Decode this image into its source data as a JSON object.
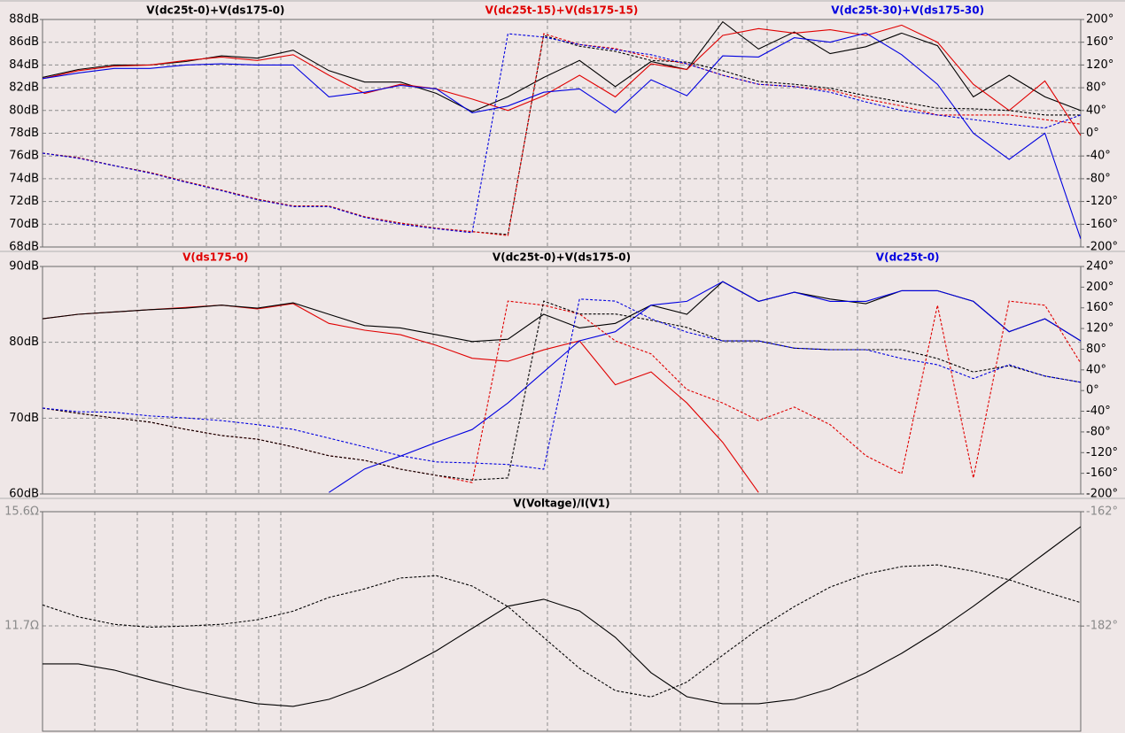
{
  "chart_data": [
    {
      "type": "line",
      "grid": true,
      "ylim": [
        68,
        88
      ],
      "yticks": [
        {
          "value": 68,
          "label": "68dB"
        },
        {
          "value": 70,
          "label": "70dB"
        },
        {
          "value": 72,
          "label": "72dB"
        },
        {
          "value": 74,
          "label": "74dB"
        },
        {
          "value": 76,
          "label": "76dB"
        },
        {
          "value": 78,
          "label": "78dB"
        },
        {
          "value": 80,
          "label": "80dB"
        },
        {
          "value": 82,
          "label": "82dB"
        },
        {
          "value": 84,
          "label": "84dB"
        },
        {
          "value": 86,
          "label": "86dB"
        },
        {
          "value": 88,
          "label": "88dB"
        }
      ],
      "y2lim": [
        -200,
        200
      ],
      "y2ticks": [
        {
          "value": -200,
          "label": "-200°"
        },
        {
          "value": -160,
          "label": "-160°"
        },
        {
          "value": -120,
          "label": "-120°"
        },
        {
          "value": -80,
          "label": "-80°"
        },
        {
          "value": -40,
          "label": "-40°"
        },
        {
          "value": 0,
          "label": "0°"
        },
        {
          "value": 40,
          "label": "40°"
        },
        {
          "value": 80,
          "label": "80°"
        },
        {
          "value": 120,
          "label": "120°"
        },
        {
          "value": 160,
          "label": "160°"
        },
        {
          "value": 200,
          "label": "200°"
        }
      ],
      "series": [
        {
          "name": "V(dc25t-0)+V(ds175-0)",
          "color": "#000000",
          "values": [
            82.9,
            83.6,
            84.0,
            84.0,
            84.3,
            84.8,
            84.6,
            85.3,
            83.5,
            82.5,
            82.5,
            81.5,
            79.9,
            81.2,
            82.9,
            84.4,
            82.1,
            84.3,
            83.6,
            87.8,
            85.4,
            86.9,
            85.0,
            85.6,
            86.8,
            85.7,
            81.2,
            83.1,
            81.2,
            80.0
          ]
        },
        {
          "name": "V(dc25t-15)+V(ds175-15)",
          "color": "#e00000",
          "values": [
            82.8,
            83.5,
            83.9,
            84.0,
            84.4,
            84.7,
            84.4,
            84.9,
            83.1,
            81.5,
            82.3,
            81.9,
            81.0,
            80.0,
            81.3,
            83.1,
            81.2,
            84.1,
            83.6,
            86.6,
            87.2,
            86.8,
            87.1,
            86.6,
            87.5,
            86.0,
            82.3,
            80.0,
            82.6,
            77.8
          ]
        },
        {
          "name": "V(dc25t-30)+V(ds175-30)",
          "color": "#0000e0",
          "values": [
            82.8,
            83.3,
            83.7,
            83.7,
            84.0,
            84.1,
            84.0,
            84.0,
            81.2,
            81.6,
            82.2,
            81.9,
            79.8,
            80.4,
            81.6,
            81.9,
            79.8,
            82.7,
            81.3,
            84.8,
            84.7,
            86.4,
            86.0,
            86.8,
            84.9,
            82.3,
            78.0,
            75.7,
            78.0,
            68.7
          ]
        },
        {
          "axis": "y2",
          "dash": true,
          "color": "#000000",
          "values": [
            -35,
            -43,
            -57,
            -69,
            -85,
            -100,
            -116,
            -128,
            -128,
            -147,
            -158,
            -167,
            -173,
            -178,
            172,
            153,
            144,
            128,
            125,
            110,
            91,
            86,
            79,
            66,
            55,
            44,
            43,
            40,
            32,
            32
          ]
        },
        {
          "axis": "y2",
          "dash": true,
          "color": "#e00000",
          "values": [
            -35,
            -43,
            -57,
            -69,
            -85,
            -100,
            -116,
            -128,
            -128,
            -147,
            -158,
            -167,
            -173,
            -180,
            175,
            156,
            149,
            133,
            122,
            102,
            86,
            82,
            76,
            60,
            48,
            32,
            32,
            32,
            24,
            16
          ]
        },
        {
          "axis": "y2",
          "dash": true,
          "color": "#0000e0",
          "values": [
            -35,
            -44,
            -57,
            -70,
            -86,
            -101,
            -117,
            -129,
            -129,
            -148,
            -160,
            -168,
            -175,
            175,
            169,
            156,
            147,
            138,
            122,
            102,
            86,
            82,
            72,
            55,
            40,
            32,
            24,
            16,
            9,
            32
          ]
        }
      ]
    },
    {
      "type": "line",
      "grid": true,
      "ylim": [
        60,
        90
      ],
      "yticks": [
        {
          "value": 60,
          "label": "60dB"
        },
        {
          "value": 70,
          "label": "70dB"
        },
        {
          "value": 80,
          "label": "80dB"
        },
        {
          "value": 90,
          "label": "90dB"
        }
      ],
      "y2lim": [
        -200,
        240
      ],
      "y2ticks": [
        {
          "value": -200,
          "label": "-200°"
        },
        {
          "value": -160,
          "label": "-160°"
        },
        {
          "value": -120,
          "label": "-120°"
        },
        {
          "value": -80,
          "label": "-80°"
        },
        {
          "value": -40,
          "label": "-40°"
        },
        {
          "value": 0,
          "label": "0°"
        },
        {
          "value": 40,
          "label": "40°"
        },
        {
          "value": 80,
          "label": "80°"
        },
        {
          "value": 120,
          "label": "120°"
        },
        {
          "value": 160,
          "label": "160°"
        },
        {
          "value": 200,
          "label": "200°"
        },
        {
          "value": 240,
          "label": "240°"
        }
      ],
      "series": [
        {
          "name": "V(ds175-0)",
          "color": "#e00000",
          "values": [
            83.1,
            83.7,
            84.0,
            84.3,
            84.6,
            84.9,
            84.4,
            85.1,
            82.5,
            81.6,
            81.0,
            79.6,
            77.9,
            77.5,
            79.0,
            80.2,
            74.4,
            76.1,
            72.0,
            66.8,
            60.2,
            null,
            null,
            null,
            null,
            null,
            null,
            null,
            null,
            null
          ]
        },
        {
          "name": "V(dc25t-0)+V(ds175-0)",
          "color": "#000000",
          "values": [
            83.1,
            83.7,
            84.0,
            84.3,
            84.5,
            84.9,
            84.5,
            85.2,
            83.7,
            82.2,
            81.9,
            81.0,
            80.1,
            80.4,
            83.7,
            81.9,
            82.5,
            84.9,
            83.7,
            88.0,
            85.4,
            86.6,
            85.7,
            85.1,
            86.8,
            86.8,
            85.4,
            81.4,
            83.1,
            80.2
          ]
        },
        {
          "name": "V(dc25t-0)",
          "color": "#0000e0",
          "values": [
            null,
            null,
            null,
            null,
            null,
            null,
            null,
            null,
            60.2,
            63.3,
            65.0,
            66.8,
            68.5,
            72.0,
            76.1,
            80.2,
            81.4,
            84.9,
            85.4,
            88.0,
            85.4,
            86.6,
            85.4,
            85.4,
            86.8,
            86.8,
            85.4,
            81.4,
            83.1,
            80.2
          ]
        },
        {
          "axis": "y2",
          "dash": true,
          "color": "#e00000",
          "values": [
            -34,
            -44,
            -53,
            -61,
            -75,
            -87,
            -94,
            -109,
            -126,
            -135,
            -152,
            -164,
            -178,
            173,
            165,
            148,
            96,
            71,
            2,
            -24,
            -58,
            -32,
            -66,
            -126,
            -161,
            165,
            -169,
            173,
            165,
            53
          ]
        },
        {
          "axis": "y2",
          "dash": true,
          "color": "#000000",
          "values": [
            -34,
            -44,
            -53,
            -61,
            -75,
            -87,
            -94,
            -109,
            -126,
            -135,
            -152,
            -164,
            -173,
            -169,
            173,
            148,
            148,
            136,
            122,
            96,
            96,
            82,
            79,
            79,
            79,
            62,
            36,
            48,
            28,
            16
          ]
        },
        {
          "axis": "y2",
          "dash": true,
          "color": "#0000e0",
          "values": [
            -34,
            -41,
            -42,
            -49,
            -53,
            -58,
            -66,
            -75,
            -92,
            -109,
            -126,
            -138,
            -140,
            -143,
            -152,
            177,
            173,
            139,
            113,
            96,
            96,
            82,
            79,
            79,
            62,
            50,
            23,
            50,
            28,
            16
          ]
        }
      ]
    },
    {
      "type": "line",
      "grid": true,
      "title": "V(Voltage)/I(V1)",
      "ylim": [
        8.1,
        15.6
      ],
      "yticks": [
        {
          "value": 11.7,
          "label": "11.7Ω"
        },
        {
          "value": 15.6,
          "label": "15.6Ω"
        }
      ],
      "y2lim": [
        -200.4,
        -162
      ],
      "y2ticks": [
        {
          "value": -182,
          "label": "-182°"
        },
        {
          "value": -162,
          "label": "-162°"
        }
      ],
      "series": [
        {
          "color": "#000000",
          "values": [
            10.4,
            10.4,
            10.19,
            9.86,
            9.55,
            9.28,
            9.04,
            8.95,
            9.19,
            9.64,
            10.19,
            10.85,
            11.61,
            12.37,
            12.61,
            12.21,
            11.31,
            10.1,
            9.28,
            9.04,
            9.04,
            9.19,
            9.55,
            10.1,
            10.76,
            11.52,
            12.37,
            13.27,
            14.18,
            15.09
          ]
        },
        {
          "axis": "y2",
          "dash": true,
          "color": "#000000",
          "values": [
            -178.3,
            -180.4,
            -181.7,
            -182.2,
            -182.0,
            -181.7,
            -180.9,
            -179.4,
            -177.0,
            -175.5,
            -173.6,
            -173.2,
            -175.0,
            -178.6,
            -184.0,
            -189.4,
            -193.3,
            -194.4,
            -191.8,
            -187.1,
            -182.5,
            -178.6,
            -175.2,
            -172.9,
            -171.6,
            -171.3,
            -172.4,
            -173.9,
            -176.0,
            -177.9
          ]
        }
      ]
    }
  ]
}
